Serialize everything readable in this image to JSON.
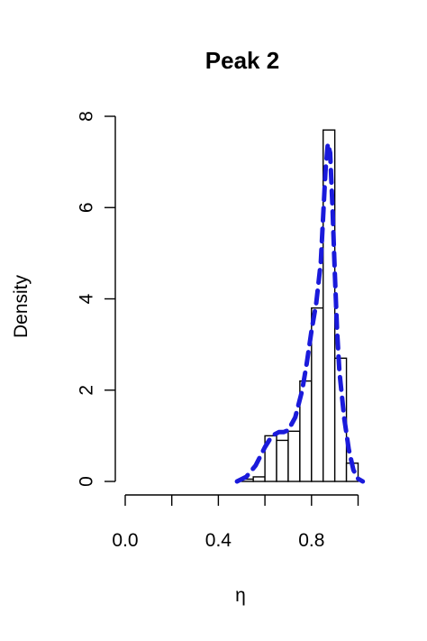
{
  "chart_data": {
    "type": "bar",
    "title": "Peak 2",
    "xlabel": "η",
    "ylabel": "Density",
    "xlim": [
      0.0,
      1.04
    ],
    "ylim": [
      0,
      8
    ],
    "x_ticks": [
      0.0,
      0.2,
      0.4,
      0.6,
      0.8,
      1.0
    ],
    "x_tick_labels": [
      "0.0",
      "",
      "0.4",
      "",
      "0.8",
      ""
    ],
    "y_ticks": [
      0,
      2,
      4,
      6,
      8
    ],
    "y_tick_labels": [
      "0",
      "2",
      "4",
      "6",
      "8"
    ],
    "bin_edges": [
      0.5,
      0.55,
      0.6,
      0.65,
      0.7,
      0.75,
      0.8,
      0.85,
      0.9,
      0.95,
      1.0
    ],
    "values": [
      0.05,
      0.1,
      1.0,
      0.9,
      1.1,
      2.2,
      3.8,
      7.7,
      2.7,
      0.4
    ],
    "grid": false,
    "series": [
      {
        "type": "line",
        "style": "dashed",
        "color": "#1a1adb",
        "x": [
          0.48,
          0.52,
          0.56,
          0.6,
          0.63,
          0.66,
          0.68,
          0.7,
          0.73,
          0.76,
          0.78,
          0.8,
          0.82,
          0.84,
          0.85,
          0.86,
          0.87,
          0.88,
          0.89,
          0.9,
          0.91,
          0.92,
          0.94,
          0.96,
          0.98,
          1.0,
          1.02
        ],
        "y": [
          0.0,
          0.1,
          0.35,
          0.75,
          1.0,
          1.08,
          1.08,
          1.12,
          1.4,
          2.0,
          2.6,
          3.3,
          3.9,
          4.8,
          5.8,
          6.8,
          7.4,
          7.2,
          6.0,
          4.6,
          3.3,
          2.4,
          1.4,
          0.7,
          0.25,
          0.06,
          0.0
        ]
      }
    ]
  }
}
